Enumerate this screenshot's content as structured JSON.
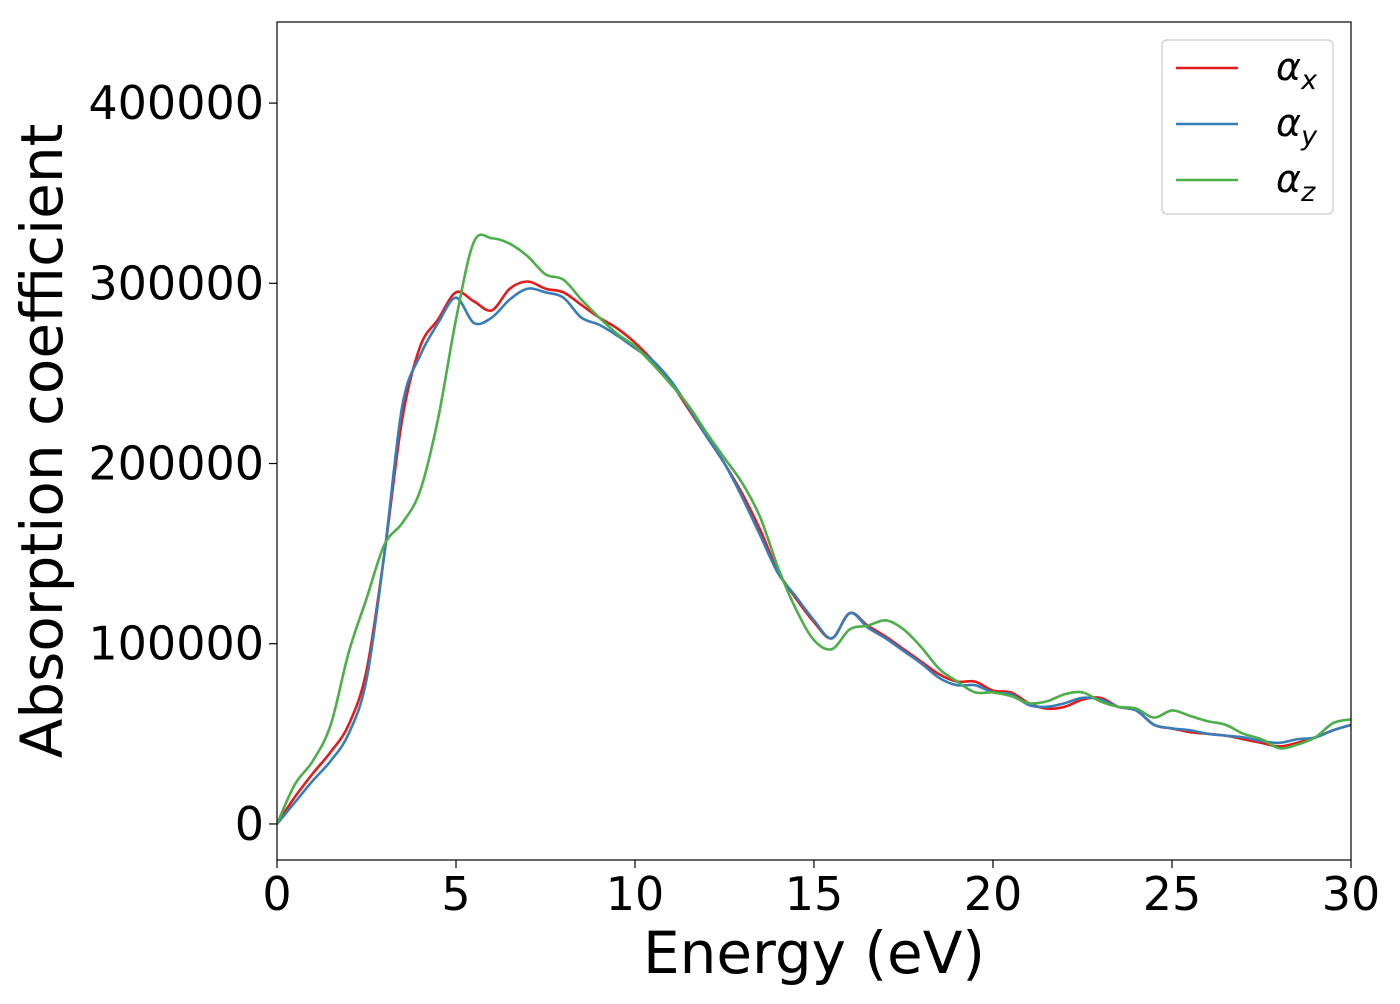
{
  "chart_data": {
    "type": "line",
    "title": "",
    "xlabel": "Energy (eV)",
    "ylabel": "Absorption coefficient",
    "xlim": [
      0,
      30
    ],
    "ylim": [
      -20000,
      445000
    ],
    "xticks": [
      0,
      5,
      10,
      15,
      20,
      25,
      30
    ],
    "yticks": [
      0,
      100000,
      200000,
      300000,
      400000
    ],
    "grid": false,
    "legend_position": "top-right",
    "series": [
      {
        "name": "α",
        "subscript": "x",
        "color": "#e41a1c",
        "x": [
          0,
          0.5,
          1,
          1.5,
          2,
          2.5,
          3,
          3.5,
          4,
          4.5,
          5,
          5.5,
          6,
          6.5,
          7,
          7.5,
          8,
          8.5,
          9,
          9.5,
          10,
          10.5,
          11,
          11.5,
          12,
          12.5,
          13,
          13.5,
          14,
          14.5,
          15,
          15.5,
          16,
          16.5,
          17,
          17.5,
          18,
          18.5,
          19,
          19.5,
          20,
          20.5,
          21,
          21.5,
          22,
          22.5,
          23,
          23.5,
          24,
          24.5,
          25,
          25.5,
          26,
          26.5,
          27,
          27.5,
          28,
          28.5,
          29,
          29.5,
          30
        ],
        "y": [
          0,
          15000,
          28000,
          40000,
          55000,
          85000,
          150000,
          225000,
          265000,
          280000,
          295000,
          290000,
          285000,
          297000,
          301000,
          297000,
          295000,
          288000,
          281000,
          275000,
          267000,
          257000,
          245000,
          230000,
          215000,
          200000,
          183000,
          163000,
          140000,
          125000,
          112000,
          103000,
          117000,
          110000,
          104000,
          97000,
          90000,
          83000,
          79000,
          79000,
          74000,
          73000,
          67000,
          64000,
          65000,
          69000,
          70000,
          65000,
          63000,
          55000,
          53000,
          51000,
          50000,
          49000,
          47000,
          45000,
          43000,
          45000,
          48000,
          52000,
          55000
        ]
      },
      {
        "name": "α",
        "subscript": "y",
        "color": "#377eb8",
        "x": [
          0,
          0.5,
          1,
          1.5,
          2,
          2.5,
          3,
          3.5,
          4,
          4.5,
          5,
          5.5,
          6,
          6.5,
          7,
          7.5,
          8,
          8.5,
          9,
          9.5,
          10,
          10.5,
          11,
          11.5,
          12,
          12.5,
          13,
          13.5,
          14,
          14.5,
          15,
          15.5,
          16,
          16.5,
          17,
          17.5,
          18,
          18.5,
          19,
          19.5,
          20,
          20.5,
          21,
          21.5,
          22,
          22.5,
          23,
          23.5,
          24,
          24.5,
          25,
          25.5,
          26,
          26.5,
          27,
          27.5,
          28,
          28.5,
          29,
          29.5,
          30
        ],
        "y": [
          0,
          12000,
          24000,
          35000,
          50000,
          80000,
          150000,
          232000,
          260000,
          278000,
          292000,
          278000,
          281000,
          291000,
          297000,
          295000,
          292000,
          281000,
          277000,
          271000,
          264000,
          257000,
          246000,
          231000,
          215000,
          200000,
          181000,
          160000,
          139000,
          126000,
          113000,
          103000,
          117000,
          109000,
          103000,
          96000,
          89000,
          81000,
          77000,
          77000,
          73000,
          72000,
          66000,
          65000,
          67000,
          70000,
          69000,
          65000,
          63000,
          55000,
          53000,
          52000,
          50000,
          49000,
          48000,
          46000,
          45000,
          47000,
          48000,
          52000,
          55000
        ]
      },
      {
        "name": "α",
        "subscript": "z",
        "color": "#4daf4a",
        "x": [
          0,
          0.5,
          1,
          1.5,
          2,
          2.5,
          3,
          3.5,
          4,
          4.5,
          5,
          5.5,
          6,
          6.5,
          7,
          7.5,
          8,
          8.5,
          9,
          9.5,
          10,
          10.5,
          11,
          11.5,
          12,
          12.5,
          13,
          13.5,
          14,
          14.5,
          15,
          15.5,
          16,
          16.5,
          17,
          17.5,
          18,
          18.5,
          19,
          19.5,
          20,
          20.5,
          21,
          21.5,
          22,
          22.5,
          23,
          23.5,
          24,
          24.5,
          25,
          25.5,
          26,
          26.5,
          27,
          27.5,
          28,
          28.5,
          29,
          29.5,
          30
        ],
        "y": [
          0,
          22000,
          35000,
          55000,
          95000,
          125000,
          155000,
          167000,
          185000,
          225000,
          280000,
          323000,
          325000,
          322000,
          315000,
          305000,
          302000,
          291000,
          281000,
          272000,
          265000,
          255000,
          244000,
          232000,
          217000,
          203000,
          189000,
          170000,
          142000,
          119000,
          102000,
          97000,
          108000,
          110000,
          113000,
          108000,
          98000,
          86000,
          79000,
          73000,
          73000,
          71000,
          67000,
          68000,
          72000,
          73000,
          68000,
          65000,
          64000,
          59000,
          63000,
          60000,
          57000,
          55000,
          50000,
          47000,
          42000,
          44000,
          48000,
          56000,
          58000
        ]
      }
    ]
  }
}
